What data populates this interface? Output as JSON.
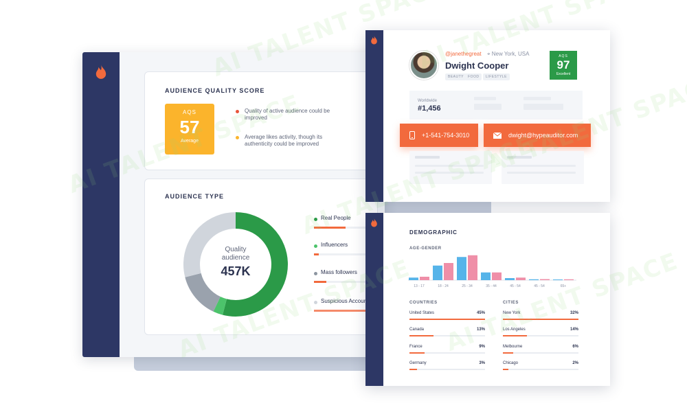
{
  "watermark": "AI TALENT SPACE",
  "aqs_card": {
    "title": "AUDIENCE QUALITY SCORE",
    "badge_label": "AQS",
    "badge_value": "57",
    "badge_sub": "Average",
    "notes": [
      {
        "text": "Quality of active audience could be improved",
        "color": "#e9533a"
      },
      {
        "text": "Average likes activity, though its authenticity could be improved",
        "color": "#fbb42c"
      }
    ]
  },
  "audience_type": {
    "title": "AUDIENCE TYPE",
    "center_label": "Quality audience",
    "center_value": "457K",
    "types": [
      {
        "label": "Real People",
        "color": "#2b9a48",
        "fill": 0.38
      },
      {
        "label": "Influencers",
        "color": "#4cc36b",
        "fill": 0.06
      },
      {
        "label": "Mass followers",
        "color": "#8c95a0",
        "fill": 0.15
      },
      {
        "label": "Suspicious Accounts",
        "color": "#d0d5dc",
        "fill": 1.0
      }
    ],
    "segments": [
      {
        "color": "#2b9a48",
        "fraction": 0.54
      },
      {
        "color": "#4cc36b",
        "fraction": 0.03
      },
      {
        "color": "#9aa2ad",
        "fraction": 0.14
      },
      {
        "color": "#d0d5dc",
        "fraction": 0.29
      }
    ]
  },
  "profile": {
    "handle": "@janethegreat",
    "location": "New York, USA",
    "name": "Dwight Cooper",
    "tags": [
      "BEAUTY",
      "FOOD",
      "LIFESTYLE"
    ],
    "aqs_label": "AQS",
    "aqs_value": "97",
    "aqs_sub": "Excellent",
    "rank_label": "Worldwide",
    "rank_value": "#1,456",
    "phone": "+1-541-754-3010",
    "email": "dwight@hypeauditor.com"
  },
  "demographic": {
    "title": "DEMOGRAPHIC",
    "age_gender_label": "AGE-GENDER",
    "age_groups": [
      "13 - 17",
      "18 - 24",
      "25 - 34",
      "35 - 44",
      "45 - 54",
      "45 - 54",
      "65+"
    ],
    "male": [
      1.5,
      8.5,
      13.5,
      4.5,
      1.2,
      0.5,
      0.4
    ],
    "female": [
      2.0,
      10.0,
      14.5,
      4.5,
      1.5,
      0.6,
      0.5
    ],
    "colors": {
      "male": "#56b4e9",
      "female": "#ef8fa8"
    },
    "countries_label": "COUNTRIES",
    "cities_label": "CITIES",
    "countries": [
      {
        "name": "United States",
        "value": "45%",
        "fill": 0.45
      },
      {
        "name": "Canada",
        "value": "13%",
        "fill": 0.13
      },
      {
        "name": "France",
        "value": "9%",
        "fill": 0.09
      },
      {
        "name": "Germany",
        "value": "3%",
        "fill": 0.03
      }
    ],
    "cities": [
      {
        "name": "New York",
        "value": "32%",
        "fill": 0.32
      },
      {
        "name": "Los Angeles",
        "value": "14%",
        "fill": 0.14
      },
      {
        "name": "Melbourne",
        "value": "6%",
        "fill": 0.06
      },
      {
        "name": "Chicago",
        "value": "2%",
        "fill": 0.02
      }
    ]
  },
  "icons": {
    "logo": "flame-icon",
    "phone": "phone-icon",
    "email": "mail-icon",
    "location": "location-pin-icon"
  }
}
